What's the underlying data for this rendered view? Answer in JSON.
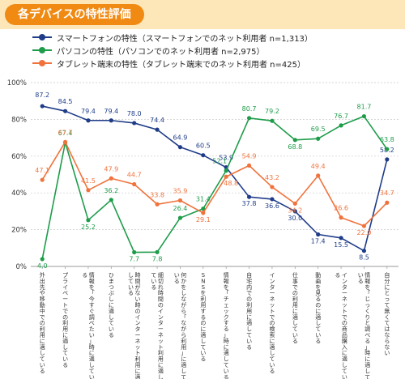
{
  "header": {
    "title": "各デバイスの特性評価"
  },
  "colors": {
    "title_bg": "#f08a12",
    "title_band": "#fde7b8",
    "smartphone": "#1f3c88",
    "pc": "#1e9c4a",
    "tablet": "#f0733c"
  },
  "chart_data": {
    "type": "line",
    "title": "各デバイスの特性評価",
    "ylim": [
      0,
      100
    ],
    "y_ticks": [
      "0%",
      "20%",
      "40%",
      "60%",
      "80%",
      "100%"
    ],
    "grid": true,
    "legend_position": "top-left",
    "categories": [
      "外出先や移動中での利用に適している",
      "プライベートでの利用に適している",
      "情報を「今すぐ調べたい」時に適している",
      "ひまつぶしに適している",
      "時間がない時のインターネット利用に適している",
      "細切れ時間のインターネット利用に適している",
      "何かをしながら「ながら利用」に適している",
      "SNSを利用するのに適している",
      "情報を「チェックする」時に適している",
      "自宅内での利用に適している",
      "インターネットでの検索に適している",
      "仕事での利用に適している",
      "動画を見るのに適している",
      "インターネットでの商品購入に適している",
      "情報を「じっくりと調べる」時に適している",
      "自分にとって無くてはならない"
    ],
    "series": [
      {
        "name": "スマートフォンの特性（スマートフォンでのネット利用者 n=1,313）",
        "color": "#1f3c88",
        "values": [
          87.2,
          84.5,
          79.4,
          79.4,
          78.0,
          74.4,
          64.9,
          60.5,
          53.9,
          37.8,
          36.6,
          30.0,
          17.4,
          15.5,
          8.5,
          58.2
        ],
        "labels": [
          "87.2",
          "84.5",
          "79.4",
          "79.4",
          "78.0",
          "74.4",
          "64.9",
          "60.5",
          "53.9",
          "37.8",
          "36.6",
          "30.0",
          "17.4",
          "15.5",
          "8.5",
          "58.2"
        ]
      },
      {
        "name": "パソコンの特性（パソコンでのネット利用者 n=2,975）",
        "color": "#1e9c4a",
        "values": [
          4.0,
          67.4,
          25.2,
          36.2,
          7.7,
          7.8,
          26.4,
          31.4,
          52.1,
          80.7,
          79.2,
          68.8,
          69.5,
          76.7,
          81.7,
          63.8
        ],
        "labels": [
          "4.0",
          "67.4",
          "25.2",
          "36.2",
          "7.7",
          "7.8",
          "26.4",
          "31.4",
          "52.1",
          "80.7",
          "79.2",
          "68.8",
          "69.5",
          "76.7",
          "81.7",
          "63.8"
        ]
      },
      {
        "name": "タブレット端末の特性（タブレット端末でのネット利用者 n=425）",
        "color": "#f0733c",
        "values": [
          47.1,
          67.7,
          41.5,
          47.9,
          44.7,
          33.8,
          35.9,
          29.1,
          48.8,
          54.9,
          43.2,
          34.2,
          49.4,
          26.6,
          22.0,
          34.7
        ],
        "labels": [
          "47.1",
          "67.7",
          "41.5",
          "47.9",
          "44.7",
          "33.8",
          "35.9",
          "29.1",
          "48.8",
          "54.9",
          "43.2",
          "34.2",
          "49.4",
          "26.6",
          "22.0",
          "34.7"
        ]
      }
    ]
  }
}
